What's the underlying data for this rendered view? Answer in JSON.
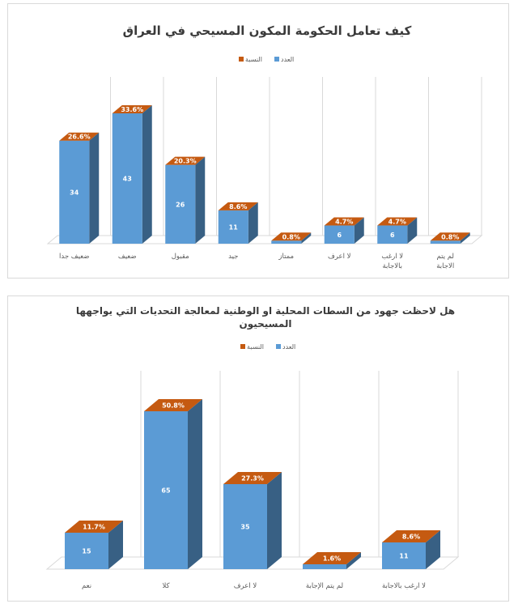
{
  "colors": {
    "count": "#5B9BD5",
    "percent": "#C55A11",
    "grid": "#d9d9d9",
    "text": "#595959"
  },
  "chart_data": [
    {
      "type": "bar",
      "title": "كيف تعامل الحكومة المكون المسيحي في العراق",
      "legend": [
        "النسبة",
        "العدد"
      ],
      "legend_position": "top",
      "grid": true,
      "categories": [
        "ضعيف جدا",
        "ضعيف",
        "مقبول",
        "جيد",
        "ممتاز",
        "لا اعرف",
        "لا ارغب|بالاجابة",
        "لم يتم|الاجابة"
      ],
      "series": [
        {
          "name": "العدد",
          "values": [
            34,
            43,
            26,
            11,
            1,
            6,
            6,
            1
          ]
        },
        {
          "name": "النسبة",
          "values": [
            "26.6%",
            "33.6%",
            "20.3%",
            "8.6%",
            "0.8%",
            "4.7%",
            "4.7%",
            "0.8%"
          ]
        }
      ]
    },
    {
      "type": "bar",
      "title": "هل لاحظت جهود من السطات المحلية او الوطنية لمعالجة التحديات التي يواجهها|المسيحيون",
      "legend": [
        "النسبة",
        "العدد"
      ],
      "legend_position": "top",
      "grid": true,
      "categories": [
        "نعم",
        "كلا",
        "لا اعرف",
        "لم يتم الإجابة",
        "لا ارغب بالاجابة"
      ],
      "series": [
        {
          "name": "العدد",
          "values": [
            15,
            65,
            35,
            2,
            11
          ]
        },
        {
          "name": "النسبة",
          "values": [
            "11.7%",
            "50.8%",
            "27.3%",
            "1.6%",
            "8.6%"
          ]
        }
      ]
    }
  ]
}
